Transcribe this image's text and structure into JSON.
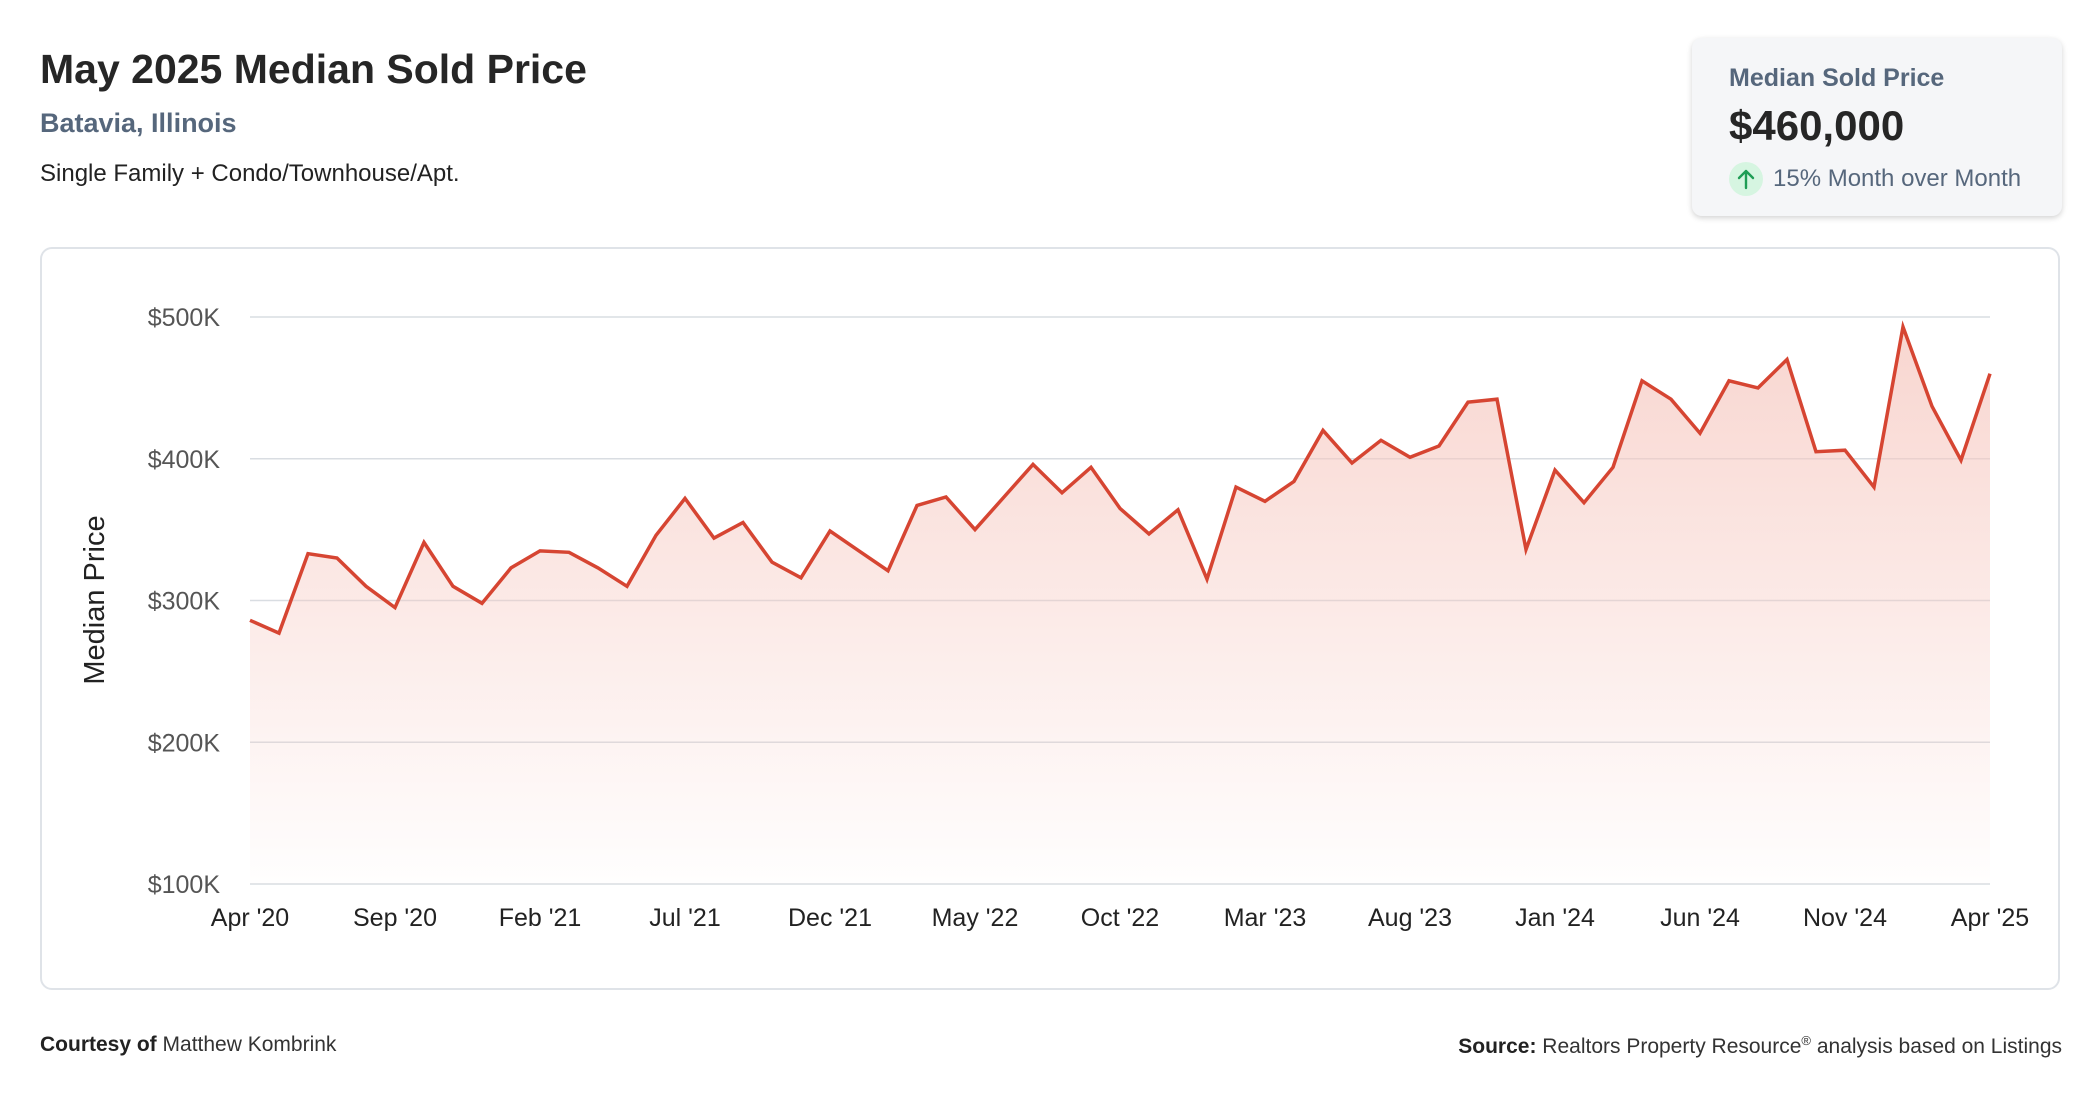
{
  "header": {
    "title": "May 2025 Median Sold Price",
    "location": "Batavia, Illinois",
    "subtitle": "Single Family + Condo/Townhouse/Apt."
  },
  "stat_card": {
    "label": "Median Sold Price",
    "value": "$460,000",
    "change": "15% Month over Month",
    "icon": "arrow-up-icon",
    "icon_color": "#1f9d55"
  },
  "footer": {
    "courtesy_label": "Courtesy of",
    "courtesy_name": "Matthew Kombrink",
    "source_label": "Source:",
    "source_text": "Realtors Property Resource",
    "source_reg": "®",
    "source_tail": "analysis based on Listings"
  },
  "colors": {
    "line": "#d64532",
    "fill": "#f6c8c0",
    "grid": "#d9dde2",
    "axis_text": "#555555"
  },
  "chart_data": {
    "type": "area",
    "ylabel": "Median Price",
    "ylim": [
      100000,
      500000
    ],
    "y_ticks": [
      {
        "value": 500000,
        "label": "$500K"
      },
      {
        "value": 400000,
        "label": "$400K"
      },
      {
        "value": 300000,
        "label": "$300K"
      },
      {
        "value": 200000,
        "label": "$200K"
      },
      {
        "value": 100000,
        "label": "$100K"
      }
    ],
    "x_ticks": [
      {
        "index": 0,
        "label": "Apr '20"
      },
      {
        "index": 5,
        "label": "Sep '20"
      },
      {
        "index": 10,
        "label": "Feb '21"
      },
      {
        "index": 15,
        "label": "Jul '21"
      },
      {
        "index": 20,
        "label": "Dec '21"
      },
      {
        "index": 25,
        "label": "May '22"
      },
      {
        "index": 30,
        "label": "Oct '22"
      },
      {
        "index": 35,
        "label": "Mar '23"
      },
      {
        "index": 40,
        "label": "Aug '23"
      },
      {
        "index": 45,
        "label": "Jan '24"
      },
      {
        "index": 50,
        "label": "Jun '24"
      },
      {
        "index": 55,
        "label": "Nov '24"
      },
      {
        "index": 60,
        "label": "Apr '25"
      }
    ],
    "x": [
      "2020-04",
      "2020-05",
      "2020-06",
      "2020-07",
      "2020-08",
      "2020-09",
      "2020-10",
      "2020-11",
      "2020-12",
      "2021-01",
      "2021-02",
      "2021-03",
      "2021-04",
      "2021-05",
      "2021-06",
      "2021-07",
      "2021-08",
      "2021-09",
      "2021-10",
      "2021-11",
      "2021-12",
      "2022-01",
      "2022-02",
      "2022-03",
      "2022-04",
      "2022-05",
      "2022-06",
      "2022-07",
      "2022-08",
      "2022-09",
      "2022-10",
      "2022-11",
      "2022-12",
      "2023-01",
      "2023-02",
      "2023-03",
      "2023-04",
      "2023-05",
      "2023-06",
      "2023-07",
      "2023-08",
      "2023-09",
      "2023-10",
      "2023-11",
      "2023-12",
      "2024-01",
      "2024-02",
      "2024-03",
      "2024-04",
      "2024-05",
      "2024-06",
      "2024-07",
      "2024-08",
      "2024-09",
      "2024-10",
      "2024-11",
      "2024-12",
      "2025-01",
      "2025-02",
      "2025-03",
      "2025-04"
    ],
    "series": [
      {
        "values": [
          286000,
          277000,
          333000,
          330000,
          310000,
          295000,
          341000,
          310000,
          298000,
          323000,
          335000,
          334000,
          323000,
          310000,
          346000,
          372000,
          344000,
          355000,
          327000,
          316000,
          349000,
          335000,
          321000,
          367000,
          373000,
          350000,
          373000,
          396000,
          376000,
          394000,
          365000,
          347000,
          364000,
          315000,
          380000,
          370000,
          384000,
          420000,
          397000,
          413000,
          401000,
          409000,
          440000,
          442000,
          336000,
          392000,
          369000,
          394000,
          455000,
          442000,
          418000,
          455000,
          450000,
          470000,
          405000,
          406000,
          380000,
          493000,
          437000,
          399000,
          460000
        ]
      }
    ],
    "grid": true,
    "legend": "none"
  }
}
